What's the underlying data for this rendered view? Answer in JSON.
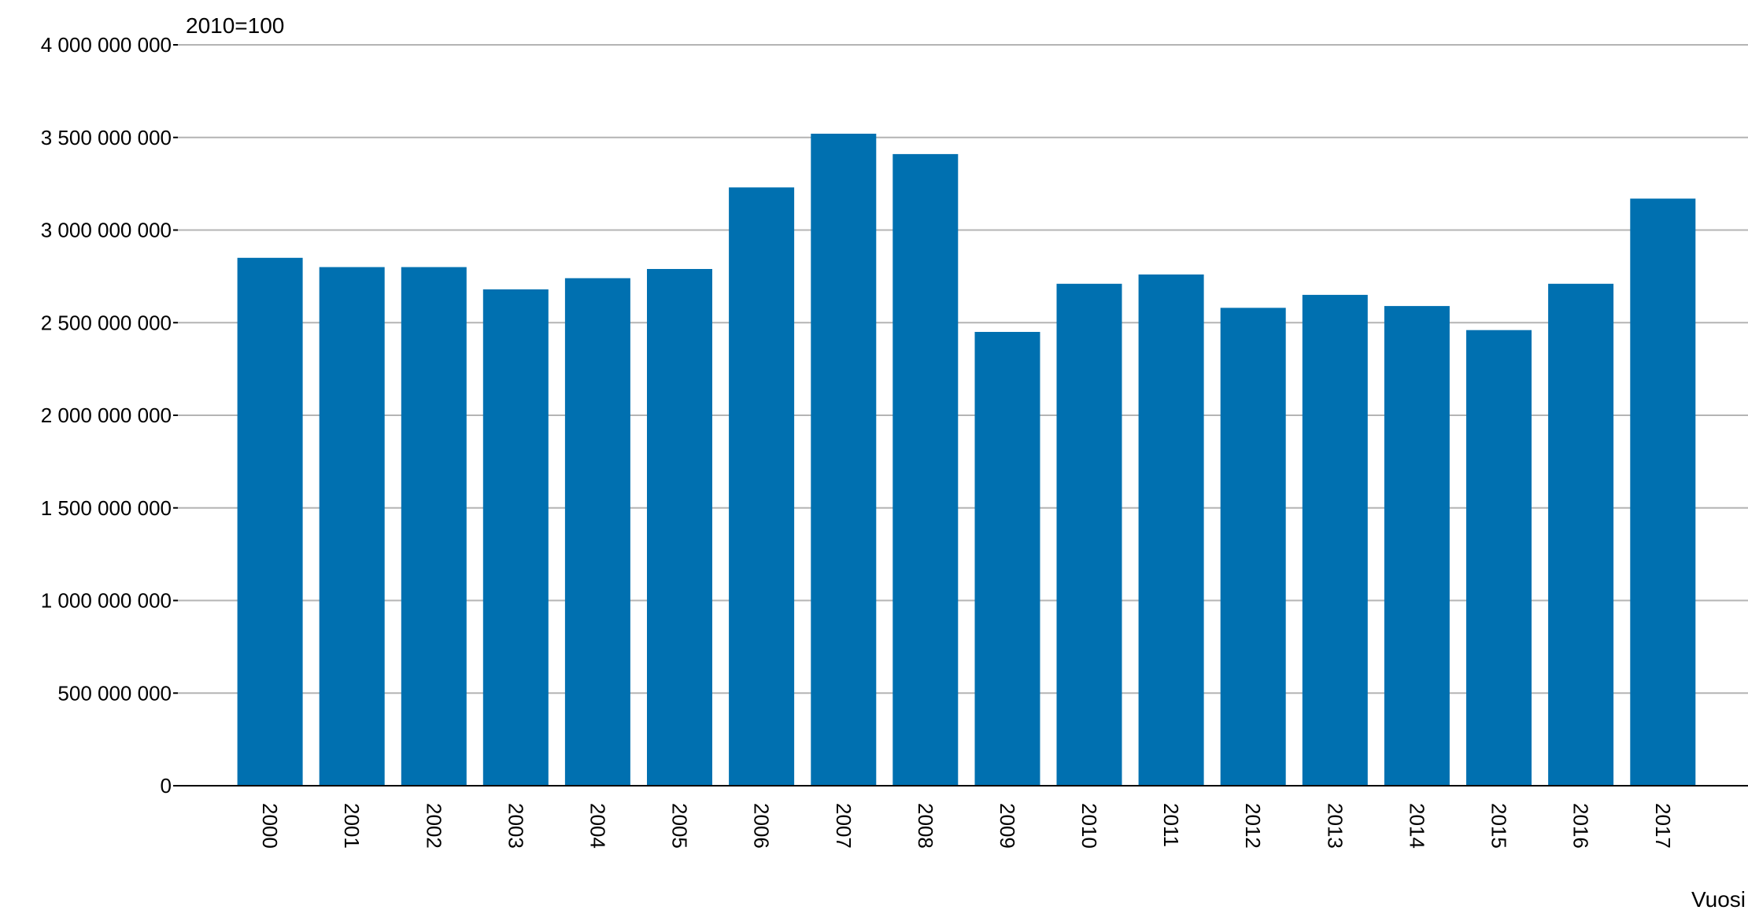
{
  "chart_data": {
    "type": "bar",
    "unit_label": "2010=100",
    "xlabel": "Vuosi",
    "ylabel": "",
    "categories": [
      "2000",
      "2001",
      "2002",
      "2003",
      "2004",
      "2005",
      "2006",
      "2007",
      "2008",
      "2009",
      "2010",
      "2011",
      "2012",
      "2013",
      "2014",
      "2015",
      "2016",
      "2017"
    ],
    "values": [
      2850000000,
      2800000000,
      2800000000,
      2680000000,
      2740000000,
      2790000000,
      3230000000,
      3520000000,
      3410000000,
      2450000000,
      2710000000,
      2760000000,
      2580000000,
      2650000000,
      2590000000,
      2460000000,
      2710000000,
      3170000000
    ],
    "ylim": [
      0,
      4000000000
    ],
    "yticks": [
      0,
      500000000,
      1000000000,
      1500000000,
      2000000000,
      2500000000,
      3000000000,
      3500000000,
      4000000000
    ],
    "ytick_labels": [
      "0",
      "500 000 000",
      "1 000 000 000",
      "1 500 000 000",
      "2 000 000 000",
      "2 500 000 000",
      "3 000 000 000",
      "3 500 000 000",
      "4 000 000 000"
    ],
    "grid": true,
    "legend": "none",
    "bar_color": "#0070b0"
  }
}
